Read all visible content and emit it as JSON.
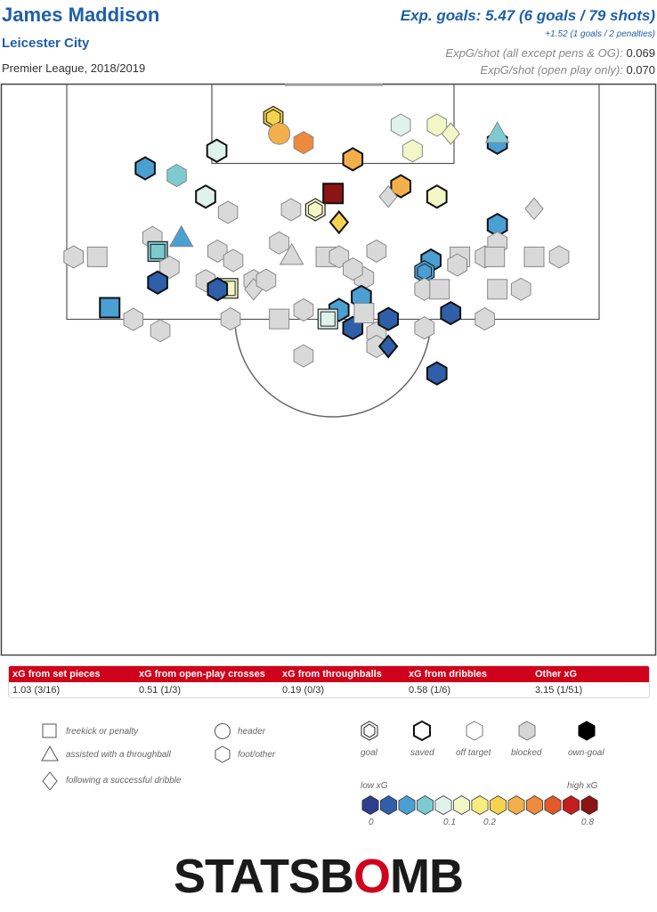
{
  "header": {
    "player": "James Maddison",
    "team": "Leicester City",
    "competition": "Premier League, 2018/2019",
    "xg_headline": "Exp. goals: 5.47 (6 goals / 79 shots)",
    "xg_pens_note": "+1.52 (1 goals / 2 penalties)",
    "rate1_label": "ExpG/shot (all except pens & OG):",
    "rate1_value": "0.069",
    "rate2_label": "ExpG/shot (open play only):",
    "rate2_value": "0.070"
  },
  "summary": {
    "headers": [
      "xG from set pieces",
      "xG from open-play crosses",
      "xG from throughballs",
      "xG from dribbles",
      "Other xG"
    ],
    "values": [
      "1.03 (3/16)",
      "0.51 (1/3)",
      "0.19 (0/3)",
      "0.58 (1/6)",
      "3.15 (1/51)"
    ]
  },
  "legend": {
    "shapes": [
      "freekick or penalty",
      "assisted with a throughball",
      "following a successful dribble",
      "header",
      "foot/other"
    ],
    "outcomes": [
      "goal",
      "saved",
      "off target",
      "blocked",
      "own-goal"
    ],
    "low_label": "low xG",
    "high_label": "high xG",
    "scale_ticks": [
      "0",
      "0.1",
      "0.2",
      "0.8"
    ],
    "scale_colors": [
      "#2c3e8c",
      "#2f5fa8",
      "#4a9fd3",
      "#7ecad1",
      "#dff3ec",
      "#f3f7c6",
      "#f9ec7e",
      "#f5d34e",
      "#f3b04a",
      "#ee8a3c",
      "#e2592a",
      "#c41e1e",
      "#8b1414"
    ]
  },
  "logo": {
    "part1": "STATSB",
    "part2": "O",
    "part3": "MB"
  },
  "chart_data": {
    "type": "scatter",
    "x_axis": "pitch width (0 = left touchline, 100 = right touchline)",
    "y_axis": "distance from goal line (pitch units, 0 = goal line)",
    "shots": [
      {
        "x": 41.6,
        "y": 7.7,
        "xg": 0.2,
        "outcome": "goal",
        "shape": "foot"
      },
      {
        "x": 42.5,
        "y": 11.3,
        "xg": 0.22,
        "outcome": "off target",
        "shape": "header"
      },
      {
        "x": 46.2,
        "y": 13.3,
        "xg": 0.35,
        "outcome": "off target",
        "shape": "foot"
      },
      {
        "x": 61.0,
        "y": 9.4,
        "xg": 0.09,
        "outcome": "off target",
        "shape": "foot"
      },
      {
        "x": 66.5,
        "y": 9.4,
        "xg": 0.12,
        "outcome": "off target",
        "shape": "foot"
      },
      {
        "x": 68.6,
        "y": 11.3,
        "xg": 0.12,
        "outcome": "off target",
        "shape": "dribble"
      },
      {
        "x": 75.7,
        "y": 13.3,
        "xg": 0.05,
        "outcome": "saved",
        "shape": "foot"
      },
      {
        "x": 75.7,
        "y": 11.3,
        "xg": 0.06,
        "outcome": "off target",
        "shape": "throughball"
      },
      {
        "x": 33.0,
        "y": 15.1,
        "xg": 0.08,
        "outcome": "saved",
        "shape": "foot"
      },
      {
        "x": 53.7,
        "y": 17.0,
        "xg": 0.24,
        "outcome": "saved",
        "shape": "foot"
      },
      {
        "x": 62.8,
        "y": 15.1,
        "xg": 0.11,
        "outcome": "off target",
        "shape": "foot"
      },
      {
        "x": 22.1,
        "y": 19.0,
        "xg": 0.04,
        "outcome": "saved",
        "shape": "foot"
      },
      {
        "x": 26.9,
        "y": 20.6,
        "xg": 0.06,
        "outcome": "off target",
        "shape": "foot"
      },
      {
        "x": 50.7,
        "y": 24.6,
        "xg": 0.8,
        "outcome": "saved",
        "shape": "freekick"
      },
      {
        "x": 61.0,
        "y": 23.0,
        "xg": 0.22,
        "outcome": "saved",
        "shape": "foot"
      },
      {
        "x": 59.1,
        "y": 25.3,
        "xg": 0.0,
        "outcome": "blocked",
        "shape": "dribble"
      },
      {
        "x": 66.5,
        "y": 25.3,
        "xg": 0.12,
        "outcome": "saved",
        "shape": "foot"
      },
      {
        "x": 31.3,
        "y": 25.3,
        "xg": 0.08,
        "outcome": "saved",
        "shape": "foot"
      },
      {
        "x": 34.7,
        "y": 28.8,
        "xg": 0.0,
        "outcome": "blocked",
        "shape": "foot"
      },
      {
        "x": 44.3,
        "y": 28.2,
        "xg": 0.0,
        "outcome": "blocked",
        "shape": "foot"
      },
      {
        "x": 48.0,
        "y": 28.2,
        "xg": 0.12,
        "outcome": "goal",
        "shape": "foot"
      },
      {
        "x": 51.6,
        "y": 31.0,
        "xg": 0.19,
        "outcome": "saved",
        "shape": "dribble"
      },
      {
        "x": 81.3,
        "y": 28.0,
        "xg": 0.0,
        "outcome": "blocked",
        "shape": "dribble"
      },
      {
        "x": 75.7,
        "y": 31.6,
        "xg": 0.04,
        "outcome": "saved",
        "shape": "foot"
      },
      {
        "x": 75.7,
        "y": 35.6,
        "xg": 0.0,
        "outcome": "blocked",
        "shape": "foot"
      },
      {
        "x": 23.2,
        "y": 34.4,
        "xg": 0.0,
        "outcome": "blocked",
        "shape": "foot"
      },
      {
        "x": 27.6,
        "y": 34.4,
        "xg": 0.05,
        "outcome": "off target",
        "shape": "throughball"
      },
      {
        "x": 24.0,
        "y": 37.5,
        "xg": 0.06,
        "outcome": "goal",
        "shape": "freekick"
      },
      {
        "x": 42.5,
        "y": 35.6,
        "xg": 0.04,
        "outcome": "blocked",
        "shape": "foot"
      },
      {
        "x": 57.3,
        "y": 37.4,
        "xg": 0.04,
        "outcome": "blocked",
        "shape": "foot"
      },
      {
        "x": 11.2,
        "y": 38.7,
        "xg": 0.03,
        "outcome": "blocked",
        "shape": "foot"
      },
      {
        "x": 14.8,
        "y": 38.7,
        "xg": 0.0,
        "outcome": "blocked",
        "shape": "freekick"
      },
      {
        "x": 25.8,
        "y": 41.0,
        "xg": 0.03,
        "outcome": "blocked",
        "shape": "foot"
      },
      {
        "x": 33.1,
        "y": 37.4,
        "xg": 0.05,
        "outcome": "blocked",
        "shape": "foot"
      },
      {
        "x": 35.5,
        "y": 39.5,
        "xg": 0.0,
        "outcome": "blocked",
        "shape": "foot"
      },
      {
        "x": 44.4,
        "y": 38.4,
        "xg": 0.0,
        "outcome": "blocked",
        "shape": "throughball"
      },
      {
        "x": 49.6,
        "y": 38.7,
        "xg": 0.0,
        "outcome": "blocked",
        "shape": "freekick"
      },
      {
        "x": 51.6,
        "y": 38.7,
        "xg": 0.08,
        "outcome": "blocked",
        "shape": "foot"
      },
      {
        "x": 65.6,
        "y": 39.5,
        "xg": 0.04,
        "outcome": "saved",
        "shape": "foot"
      },
      {
        "x": 70.0,
        "y": 38.7,
        "xg": 0.0,
        "outcome": "blocked",
        "shape": "freekick"
      },
      {
        "x": 73.8,
        "y": 38.7,
        "xg": 0.05,
        "outcome": "blocked",
        "shape": "foot"
      },
      {
        "x": 75.3,
        "y": 38.7,
        "xg": 0.05,
        "outcome": "blocked",
        "shape": "freekick"
      },
      {
        "x": 81.3,
        "y": 38.7,
        "xg": 0.05,
        "outcome": "blocked",
        "shape": "freekick"
      },
      {
        "x": 85.1,
        "y": 38.7,
        "xg": 0.0,
        "outcome": "blocked",
        "shape": "foot"
      },
      {
        "x": 24.0,
        "y": 44.4,
        "xg": 0.03,
        "outcome": "saved",
        "shape": "foot"
      },
      {
        "x": 31.3,
        "y": 44.0,
        "xg": 0.05,
        "outcome": "blocked",
        "shape": "foot"
      },
      {
        "x": 38.6,
        "y": 44.0,
        "xg": 0.05,
        "outcome": "blocked",
        "shape": "foot"
      },
      {
        "x": 55.4,
        "y": 43.4,
        "xg": 0.0,
        "outcome": "blocked",
        "shape": "foot"
      },
      {
        "x": 64.6,
        "y": 42.0,
        "xg": 0.05,
        "outcome": "goal",
        "shape": "foot"
      },
      {
        "x": 16.7,
        "y": 50.0,
        "xg": 0.05,
        "outcome": "saved",
        "shape": "freekick"
      },
      {
        "x": 34.7,
        "y": 45.7,
        "xg": 0.1,
        "outcome": "goal",
        "shape": "freekick"
      },
      {
        "x": 33.1,
        "y": 45.9,
        "xg": 0.03,
        "outcome": "saved",
        "shape": "foot"
      },
      {
        "x": 38.6,
        "y": 45.9,
        "xg": 0.0,
        "outcome": "blocked",
        "shape": "dribble"
      },
      {
        "x": 40.5,
        "y": 43.9,
        "xg": 0.05,
        "outcome": "blocked",
        "shape": "foot"
      },
      {
        "x": 55.0,
        "y": 47.6,
        "xg": 0.04,
        "outcome": "saved",
        "shape": "foot"
      },
      {
        "x": 51.6,
        "y": 50.5,
        "xg": 0.04,
        "outcome": "saved",
        "shape": "foot"
      },
      {
        "x": 64.6,
        "y": 45.9,
        "xg": 0.0,
        "outcome": "blocked",
        "shape": "foot"
      },
      {
        "x": 66.9,
        "y": 45.9,
        "xg": 0.07,
        "outcome": "blocked",
        "shape": "freekick"
      },
      {
        "x": 75.7,
        "y": 45.9,
        "xg": 0.0,
        "outcome": "blocked",
        "shape": "freekick"
      },
      {
        "x": 79.3,
        "y": 45.9,
        "xg": 0.03,
        "outcome": "blocked",
        "shape": "foot"
      },
      {
        "x": 20.3,
        "y": 52.6,
        "xg": 0.03,
        "outcome": "blocked",
        "shape": "foot"
      },
      {
        "x": 24.4,
        "y": 55.1,
        "xg": 0.03,
        "outcome": "blocked",
        "shape": "foot"
      },
      {
        "x": 35.1,
        "y": 52.5,
        "xg": 0.03,
        "outcome": "blocked",
        "shape": "foot"
      },
      {
        "x": 42.5,
        "y": 52.5,
        "xg": 0.0,
        "outcome": "blocked",
        "shape": "freekick"
      },
      {
        "x": 46.2,
        "y": 50.5,
        "xg": 0.04,
        "outcome": "blocked",
        "shape": "foot"
      },
      {
        "x": 49.9,
        "y": 52.5,
        "xg": 0.08,
        "outcome": "goal",
        "shape": "freekick"
      },
      {
        "x": 53.7,
        "y": 54.5,
        "xg": 0.02,
        "outcome": "saved",
        "shape": "foot"
      },
      {
        "x": 55.4,
        "y": 51.2,
        "xg": 0.0,
        "outcome": "blocked",
        "shape": "freekick"
      },
      {
        "x": 57.3,
        "y": 55.6,
        "xg": 0.0,
        "outcome": "blocked",
        "shape": "foot"
      },
      {
        "x": 59.1,
        "y": 52.5,
        "xg": 0.02,
        "outcome": "saved",
        "shape": "foot"
      },
      {
        "x": 57.3,
        "y": 58.6,
        "xg": 0.0,
        "outcome": "blocked",
        "shape": "foot"
      },
      {
        "x": 59.1,
        "y": 58.6,
        "xg": 0.02,
        "outcome": "saved",
        "shape": "dribble"
      },
      {
        "x": 64.6,
        "y": 54.5,
        "xg": 0.03,
        "outcome": "blocked",
        "shape": "foot"
      },
      {
        "x": 68.6,
        "y": 51.2,
        "xg": 0.02,
        "outcome": "saved",
        "shape": "foot"
      },
      {
        "x": 73.8,
        "y": 52.5,
        "xg": 0.0,
        "outcome": "blocked",
        "shape": "foot"
      },
      {
        "x": 46.2,
        "y": 60.7,
        "xg": 0.0,
        "outcome": "blocked",
        "shape": "foot"
      },
      {
        "x": 66.5,
        "y": 64.6,
        "xg": 0.02,
        "outcome": "saved",
        "shape": "foot"
      },
      {
        "x": 53.7,
        "y": 41.4,
        "xg": 0.0,
        "outcome": "blocked",
        "shape": "foot"
      },
      {
        "x": 69.6,
        "y": 40.5,
        "xg": 0.0,
        "outcome": "blocked",
        "shape": "foot"
      }
    ]
  }
}
